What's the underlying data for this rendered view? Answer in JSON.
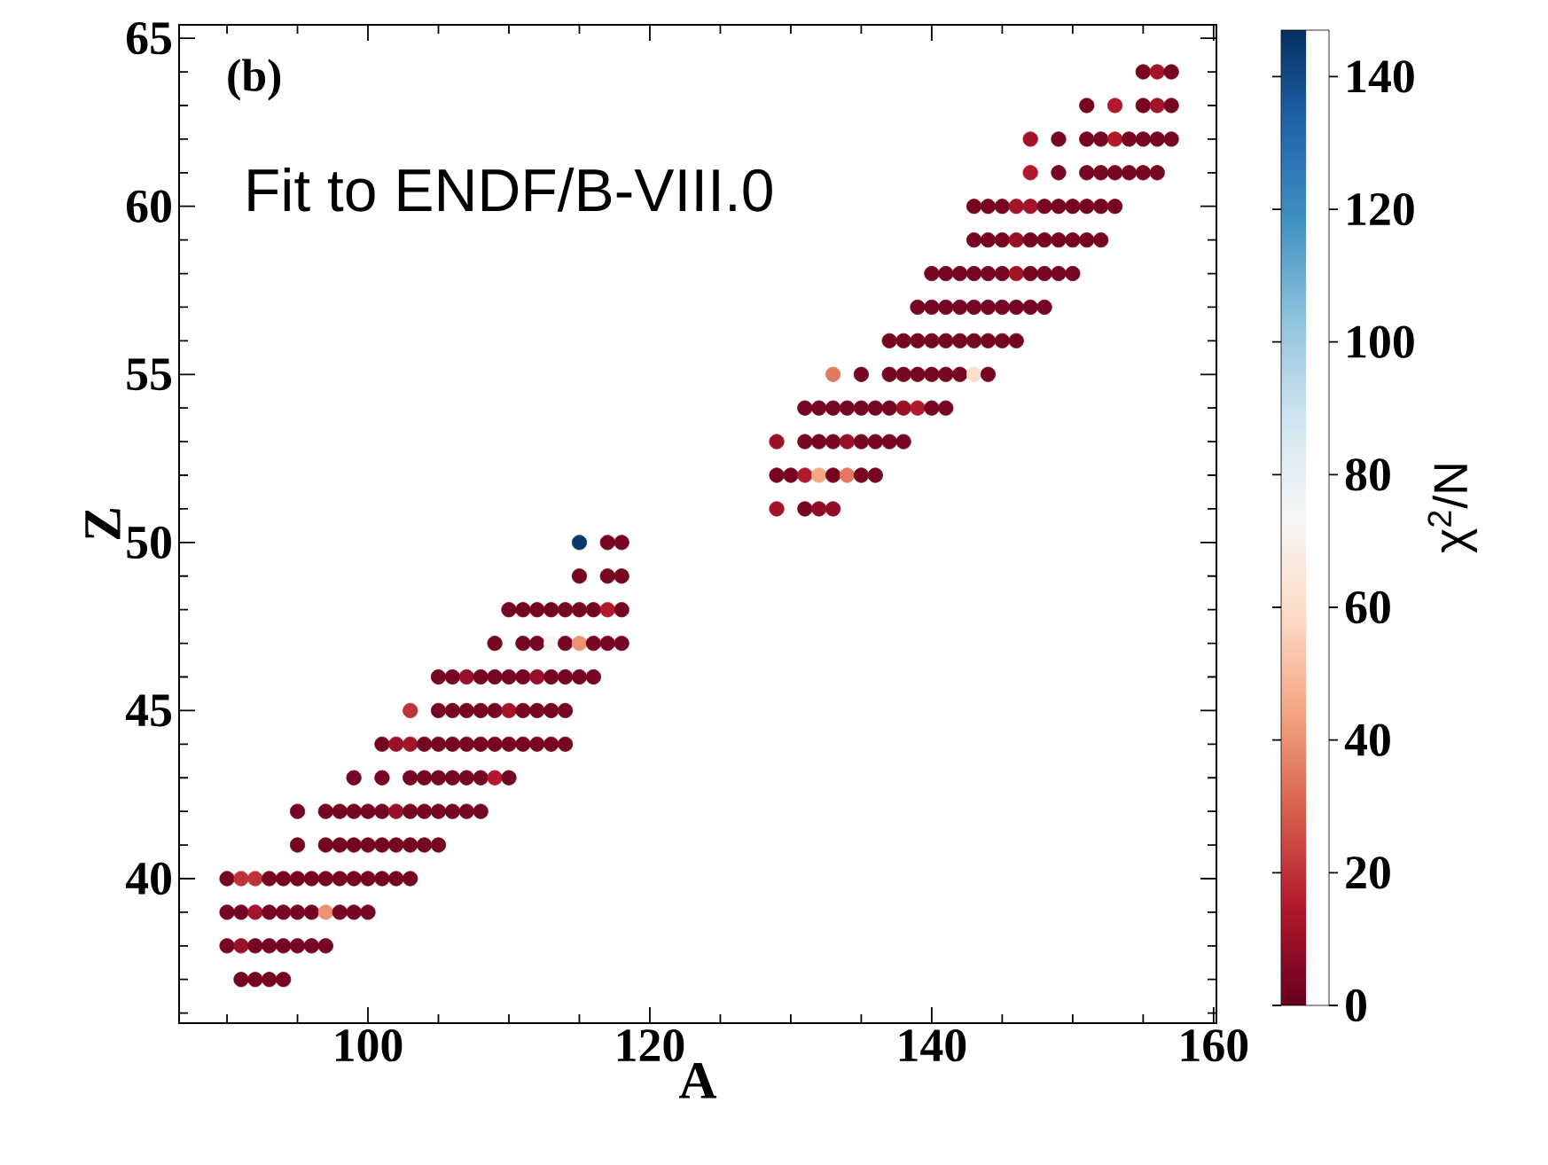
{
  "chart_data": {
    "type": "scatter",
    "xlabel": "A",
    "ylabel": "Z",
    "clabel": "χ$^{2}$/N",
    "marker": "circle",
    "annotations": [
      "(b)",
      "Fit to ENDF/B-VIII.0"
    ],
    "xlim": [
      86.6,
      160.2
    ],
    "ylim": [
      35.7,
      65.4
    ],
    "clim": [
      0,
      147
    ],
    "xticks": [
      {
        "value": 90,
        "label": null
      },
      {
        "value": 95,
        "label": null
      },
      100,
      {
        "value": 105,
        "label": null
      },
      {
        "value": 110,
        "label": null
      },
      {
        "value": 115,
        "label": null
      },
      120,
      {
        "value": 125,
        "label": null
      },
      {
        "value": 130,
        "label": null
      },
      {
        "value": 135,
        "label": null
      },
      140,
      {
        "value": 145,
        "label": null
      },
      {
        "value": 150,
        "label": null
      },
      {
        "value": 155,
        "label": null
      },
      160
    ],
    "yticks": [
      {
        "value": 36,
        "label": null
      },
      {
        "value": 37,
        "label": null
      },
      {
        "value": 38,
        "label": null
      },
      {
        "value": 39,
        "label": null
      },
      40,
      {
        "value": 41,
        "label": null
      },
      {
        "value": 42,
        "label": null
      },
      {
        "value": 43,
        "label": null
      },
      {
        "value": 44,
        "label": null
      },
      45,
      {
        "value": 46,
        "label": null
      },
      {
        "value": 47,
        "label": null
      },
      {
        "value": 48,
        "label": null
      },
      {
        "value": 49,
        "label": null
      },
      50,
      {
        "value": 51,
        "label": null
      },
      {
        "value": 52,
        "label": null
      },
      {
        "value": 53,
        "label": null
      },
      {
        "value": 54,
        "label": null
      },
      55,
      {
        "value": 56,
        "label": null
      },
      {
        "value": 57,
        "label": null
      },
      {
        "value": 58,
        "label": null
      },
      {
        "value": 59,
        "label": null
      },
      60,
      {
        "value": 61,
        "label": null
      },
      {
        "value": 62,
        "label": null
      },
      {
        "value": 63,
        "label": null
      },
      {
        "value": 64,
        "label": null
      },
      65
    ],
    "cticks": [
      0,
      20,
      40,
      60,
      80,
      100,
      120,
      140
    ],
    "x": [
      91,
      92,
      93,
      94,
      90,
      91,
      92,
      93,
      94,
      95,
      96,
      97,
      90,
      91,
      92,
      93,
      94,
      95,
      96,
      97,
      98,
      99,
      100,
      90,
      91,
      92,
      93,
      94,
      95,
      96,
      97,
      98,
      99,
      100,
      101,
      102,
      103,
      95,
      97,
      98,
      99,
      100,
      101,
      102,
      103,
      104,
      105,
      95,
      97,
      98,
      99,
      100,
      101,
      102,
      103,
      104,
      105,
      106,
      107,
      108,
      99,
      101,
      103,
      104,
      105,
      106,
      107,
      108,
      109,
      110,
      101,
      102,
      103,
      104,
      105,
      106,
      107,
      108,
      109,
      110,
      111,
      112,
      113,
      114,
      103,
      105,
      106,
      107,
      108,
      109,
      110,
      111,
      112,
      113,
      114,
      105,
      106,
      107,
      108,
      109,
      110,
      111,
      112,
      113,
      114,
      115,
      116,
      109,
      111,
      112,
      113,
      114,
      115,
      116,
      117,
      118,
      110,
      111,
      112,
      113,
      114,
      115,
      116,
      117,
      118,
      115,
      117,
      118,
      115,
      117,
      118,
      129,
      131,
      132,
      133,
      129,
      130,
      131,
      132,
      133,
      134,
      135,
      136,
      129,
      131,
      132,
      133,
      134,
      135,
      136,
      137,
      138,
      131,
      132,
      133,
      134,
      135,
      136,
      137,
      138,
      139,
      140,
      141,
      133,
      135,
      137,
      138,
      139,
      140,
      141,
      142,
      143,
      144,
      137,
      138,
      139,
      140,
      141,
      142,
      143,
      144,
      145,
      146,
      139,
      140,
      141,
      142,
      143,
      144,
      145,
      146,
      147,
      148,
      140,
      141,
      142,
      143,
      144,
      145,
      146,
      147,
      148,
      149,
      150,
      143,
      144,
      145,
      146,
      147,
      148,
      149,
      150,
      151,
      152,
      143,
      144,
      145,
      146,
      147,
      148,
      149,
      150,
      151,
      152,
      153,
      147,
      149,
      151,
      152,
      153,
      154,
      155,
      156,
      147,
      149,
      151,
      152,
      153,
      154,
      155,
      156,
      157,
      151,
      153,
      155,
      156,
      157,
      155,
      156,
      157
    ],
    "values": [
      37,
      37,
      37,
      37,
      38,
      38,
      38,
      38,
      38,
      38,
      38,
      38,
      39,
      39,
      39,
      39,
      39,
      39,
      39,
      39,
      39,
      39,
      39,
      40,
      40,
      40,
      40,
      40,
      40,
      40,
      40,
      40,
      40,
      40,
      40,
      40,
      40,
      41,
      41,
      41,
      41,
      41,
      41,
      41,
      41,
      41,
      41,
      42,
      42,
      42,
      42,
      42,
      42,
      42,
      42,
      42,
      42,
      42,
      42,
      42,
      43,
      43,
      43,
      43,
      43,
      43,
      43,
      43,
      43,
      43,
      44,
      44,
      44,
      44,
      44,
      44,
      44,
      44,
      44,
      44,
      44,
      44,
      44,
      44,
      45,
      45,
      45,
      45,
      45,
      45,
      45,
      45,
      45,
      45,
      45,
      46,
      46,
      46,
      46,
      46,
      46,
      46,
      46,
      46,
      46,
      46,
      46,
      47,
      47,
      47,
      47,
      47,
      47,
      47,
      47,
      47,
      48,
      48,
      48,
      48,
      48,
      48,
      48,
      48,
      48,
      49,
      49,
      49,
      50,
      50,
      50,
      51,
      51,
      51,
      51,
      52,
      52,
      52,
      52,
      52,
      52,
      52,
      52,
      53,
      53,
      53,
      53,
      53,
      53,
      53,
      53,
      53,
      54,
      54,
      54,
      54,
      54,
      54,
      54,
      54,
      54,
      54,
      54,
      55,
      55,
      55,
      55,
      55,
      55,
      55,
      55,
      55,
      55,
      56,
      56,
      56,
      56,
      56,
      56,
      56,
      56,
      56,
      56,
      57,
      57,
      57,
      57,
      57,
      57,
      57,
      57,
      57,
      57,
      58,
      58,
      58,
      58,
      58,
      58,
      58,
      58,
      58,
      58,
      58,
      59,
      59,
      59,
      59,
      59,
      59,
      59,
      59,
      59,
      59,
      60,
      60,
      60,
      60,
      60,
      60,
      60,
      60,
      60,
      60,
      60,
      61,
      61,
      61,
      61,
      61,
      61,
      61,
      61,
      62,
      62,
      62,
      62,
      62,
      62,
      62,
      62,
      62,
      63,
      63,
      63,
      63,
      63,
      64,
      64,
      64
    ],
    "cvalues": [
      3,
      3,
      3,
      3,
      3,
      10,
      3,
      3,
      3,
      3,
      3,
      3,
      3,
      3,
      12,
      3,
      3,
      3,
      3,
      40,
      3,
      3,
      3,
      3,
      20,
      20,
      3,
      3,
      3,
      3,
      3,
      3,
      3,
      3,
      3,
      3,
      3,
      3,
      3,
      3,
      3,
      3,
      3,
      3,
      3,
      3,
      3,
      3,
      3,
      3,
      3,
      3,
      3,
      10,
      3,
      3,
      3,
      3,
      3,
      3,
      3,
      3,
      3,
      3,
      3,
      3,
      3,
      3,
      15,
      3,
      3,
      10,
      12,
      3,
      3,
      3,
      3,
      3,
      3,
      3,
      3,
      3,
      3,
      3,
      20,
      3,
      3,
      3,
      3,
      3,
      12,
      3,
      3,
      3,
      3,
      3,
      3,
      10,
      3,
      3,
      3,
      3,
      10,
      3,
      3,
      3,
      3,
      3,
      3,
      3,
      72,
      3,
      40,
      3,
      3,
      3,
      3,
      3,
      3,
      3,
      3,
      3,
      3,
      15,
      3,
      3,
      3,
      3,
      145,
      3,
      3,
      12,
      3,
      8,
      8,
      3,
      3,
      15,
      45,
      3,
      35,
      3,
      3,
      10,
      3,
      3,
      3,
      10,
      3,
      3,
      3,
      3,
      3,
      3,
      3,
      3,
      3,
      3,
      3,
      10,
      15,
      3,
      3,
      35,
      3,
      3,
      3,
      3,
      3,
      3,
      3,
      60,
      3,
      3,
      3,
      3,
      3,
      3,
      3,
      3,
      3,
      3,
      3,
      3,
      3,
      3,
      3,
      3,
      3,
      3,
      3,
      3,
      3,
      3,
      3,
      3,
      3,
      3,
      3,
      12,
      3,
      3,
      3,
      3,
      3,
      3,
      3,
      10,
      3,
      3,
      3,
      3,
      3,
      3,
      3,
      3,
      3,
      12,
      12,
      3,
      3,
      3,
      3,
      3,
      3,
      15,
      3,
      3,
      3,
      3,
      3,
      3,
      3,
      12,
      3,
      3,
      3,
      15,
      3,
      3,
      3,
      3,
      3,
      15,
      3,
      12,
      3,
      3,
      12,
      3
    ]
  }
}
